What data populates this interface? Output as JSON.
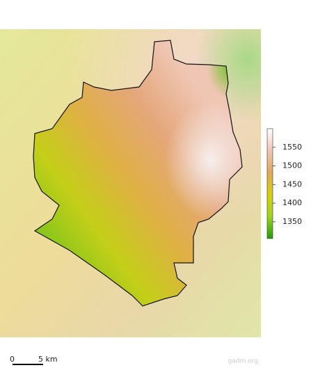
{
  "legend": {
    "range": [
      1305,
      1600
    ],
    "ticks": [
      1550,
      1500,
      1450,
      1400,
      1350
    ]
  },
  "scale_bar": {
    "start": "0",
    "end": "5 km"
  },
  "credit": "gadm.org"
}
